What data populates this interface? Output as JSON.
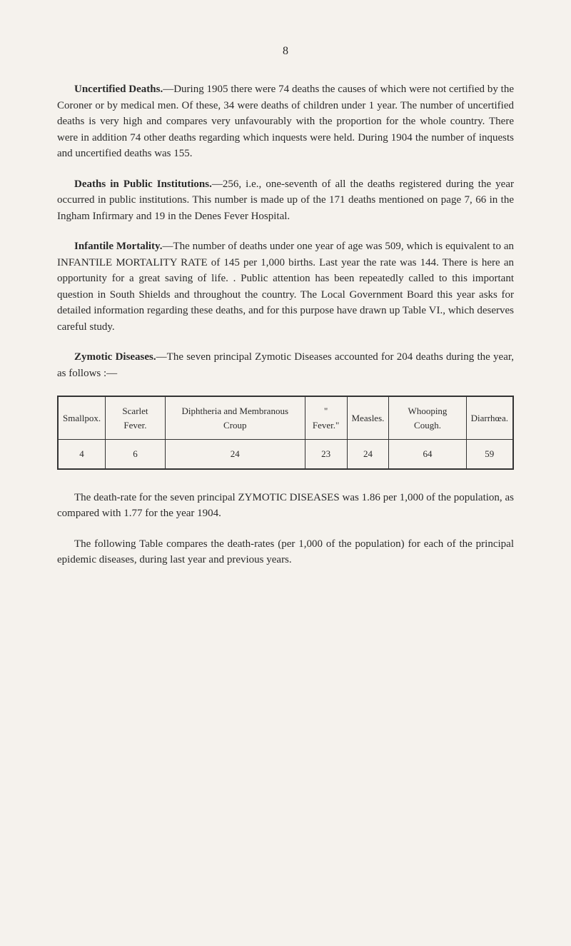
{
  "page_number": "8",
  "sections": {
    "uncertified": {
      "title": "Uncertified Deaths.",
      "text": "—During 1905 there were 74 deaths the causes of which were not certified by the Coroner or by medical men. Of these, 34 were deaths of children under 1 year. The number of uncertified deaths is very high and compares very unfavourably with the proportion for the whole country. There were in addition 74 other deaths regarding which inquests were held. During 1904 the number of inquests and uncertified deaths was 155."
    },
    "public_inst": {
      "title": "Deaths in Public Institutions.",
      "text": "—256, i.e., one-seventh of all the deaths registered during the year occurred in public institutions. This number is made up of the 171 deaths mentioned on page 7, 66 in the Ingham Infirmary and 19 in the Denes Fever Hospital."
    },
    "infantile": {
      "title": "Infantile Mortality.",
      "text": "—The number of deaths under one year of age was 509, which is equivalent to an INFANTILE MORTALITY RATE of 145 per 1,000 births. Last year the rate was 144. There is here an opportunity for a great saving of life. . Public attention has been repeatedly called to this important question in South Shields and throughout the country. The Local Government Board this year asks for detailed information regarding these deaths, and for this purpose have drawn up Table VI., which deserves careful study."
    },
    "zymotic": {
      "title": "Zymotic Diseases.",
      "text": "—The seven principal Zymotic Diseases accounted for 204 deaths during the year, as follows :—"
    },
    "death_rate": {
      "text": "The death-rate for the seven principal ZYMOTIC DISEASES was 1.86 per 1,000 of the population, as compared with 1.77 for the year 1904."
    },
    "following_table": {
      "text": "The following Table compares the death-rates (per 1,000 of the population) for each of the principal epidemic diseases, during last year and previous years."
    }
  },
  "table": {
    "headers": [
      "Smallpox.",
      "Scarlet Fever.",
      "Diphtheria and Membranous Croup",
      "\" Fever.\"",
      "Measles.",
      "Whooping Cough.",
      "Diarrhœa."
    ],
    "row": [
      "4",
      "6",
      "24",
      "23",
      "24",
      "64",
      "59"
    ]
  }
}
